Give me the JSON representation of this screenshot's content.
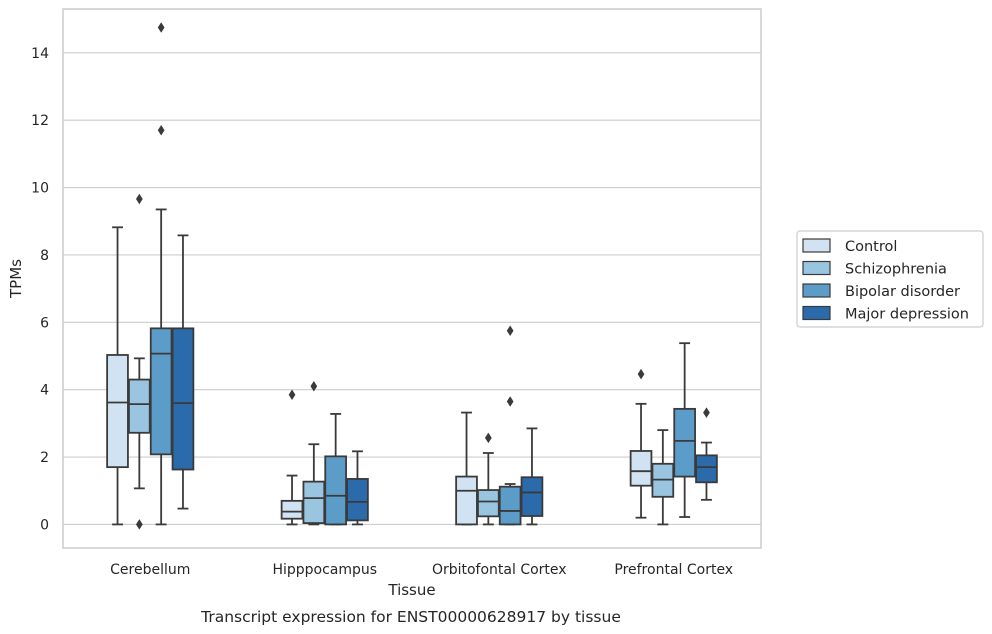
{
  "chart_data": {
    "type": "boxplot",
    "title": "",
    "caption": "Transcript expression for ENST00000628917 by tissue",
    "xlabel": "Tissue",
    "ylabel": "TPMs",
    "ylim": [
      -0.7,
      15.3
    ],
    "yticks": [
      0,
      2,
      4,
      6,
      8,
      10,
      12,
      14
    ],
    "grid": "horizontal",
    "legend_placement": "right",
    "categories": [
      "Cerebellum",
      "Hipppocampus",
      "Orbitofontal Cortex",
      "Prefrontal Cortex"
    ],
    "series": [
      {
        "name": "Control",
        "color": "#d1e2f2",
        "boxes": [
          {
            "whislo": 0.0,
            "q1": 1.7,
            "med": 3.62,
            "q3": 5.03,
            "whishi": 8.82,
            "fliers": []
          },
          {
            "whislo": 0.0,
            "q1": 0.17,
            "med": 0.38,
            "q3": 0.7,
            "whishi": 1.45,
            "fliers": [
              3.85
            ]
          },
          {
            "whislo": 0.0,
            "q1": 0.0,
            "med": 1.0,
            "q3": 1.42,
            "whishi": 3.32,
            "fliers": []
          },
          {
            "whislo": 0.2,
            "q1": 1.15,
            "med": 1.58,
            "q3": 2.18,
            "whishi": 3.58,
            "fliers": [
              4.46
            ]
          }
        ]
      },
      {
        "name": "Schizophrenia",
        "color": "#9ac5e0",
        "boxes": [
          {
            "whislo": 1.07,
            "q1": 2.72,
            "med": 3.57,
            "q3": 4.3,
            "whishi": 4.93,
            "fliers": [
              9.66,
              0.0
            ]
          },
          {
            "whislo": 0.0,
            "q1": 0.04,
            "med": 0.78,
            "q3": 1.27,
            "whishi": 2.38,
            "fliers": [
              4.1
            ]
          },
          {
            "whislo": 0.0,
            "q1": 0.24,
            "med": 0.68,
            "q3": 1.02,
            "whishi": 2.12,
            "fliers": [
              2.57
            ]
          },
          {
            "whislo": 0.0,
            "q1": 0.82,
            "med": 1.33,
            "q3": 1.8,
            "whishi": 2.8,
            "fliers": []
          }
        ]
      },
      {
        "name": "Bipolar disorder",
        "color": "#5b9cc9",
        "boxes": [
          {
            "whislo": 0.0,
            "q1": 2.08,
            "med": 5.07,
            "q3": 5.82,
            "whishi": 9.35,
            "fliers": [
              11.7,
              14.75
            ]
          },
          {
            "whislo": 0.0,
            "q1": 0.0,
            "med": 0.85,
            "q3": 2.02,
            "whishi": 3.28,
            "fliers": []
          },
          {
            "whislo": 0.0,
            "q1": 0.0,
            "med": 0.4,
            "q3": 1.12,
            "whishi": 1.2,
            "fliers": [
              3.65,
              5.75
            ]
          },
          {
            "whislo": 0.22,
            "q1": 1.42,
            "med": 2.48,
            "q3": 3.43,
            "whishi": 5.38,
            "fliers": []
          }
        ]
      },
      {
        "name": "Major depression",
        "color": "#2b6aab",
        "boxes": [
          {
            "whislo": 0.47,
            "q1": 1.63,
            "med": 3.6,
            "q3": 5.82,
            "whishi": 8.58,
            "fliers": []
          },
          {
            "whislo": 0.0,
            "q1": 0.12,
            "med": 0.67,
            "q3": 1.35,
            "whishi": 2.17,
            "fliers": []
          },
          {
            "whislo": 0.0,
            "q1": 0.25,
            "med": 0.95,
            "q3": 1.4,
            "whishi": 2.85,
            "fliers": []
          },
          {
            "whislo": 0.73,
            "q1": 1.25,
            "med": 1.7,
            "q3": 2.05,
            "whishi": 2.43,
            "fliers": [
              3.32
            ]
          }
        ]
      }
    ]
  }
}
